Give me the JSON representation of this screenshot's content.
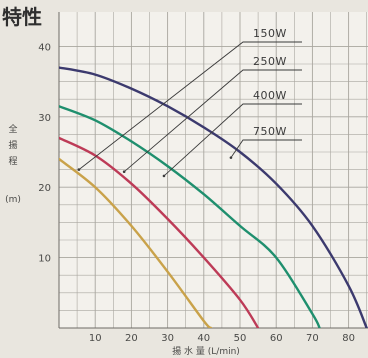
{
  "chart_data": {
    "type": "line",
    "title": "特性",
    "xlabel": "揚 水 量 (L/min)",
    "ylabel": [
      "全",
      "揚",
      "程",
      "(m)"
    ],
    "xlim": [
      0,
      85
    ],
    "ylim": [
      0,
      42
    ],
    "x_ticks": [
      10,
      20,
      30,
      40,
      50,
      60,
      70,
      80
    ],
    "y_ticks": [
      10,
      20,
      30,
      40
    ],
    "grid": true,
    "series": [
      {
        "name": "150W",
        "color": "#c9a24a",
        "x": [
          0,
          10,
          20,
          30,
          40,
          42
        ],
        "y": [
          24,
          20,
          14.5,
          8,
          1,
          0
        ]
      },
      {
        "name": "250W",
        "color": "#bd3b57",
        "x": [
          0,
          10,
          20,
          30,
          40,
          50,
          55
        ],
        "y": [
          27,
          24.5,
          20.5,
          15.5,
          10,
          4,
          0
        ]
      },
      {
        "name": "400W",
        "color": "#1f8f6e",
        "x": [
          0,
          10,
          20,
          30,
          40,
          50,
          60,
          70,
          72
        ],
        "y": [
          31.5,
          29.5,
          26.5,
          23,
          19,
          14.5,
          10,
          2,
          0
        ]
      },
      {
        "name": "750W",
        "color": "#3c3a6e",
        "x": [
          0,
          10,
          20,
          30,
          40,
          50,
          60,
          70,
          80,
          85
        ],
        "y": [
          37,
          36,
          34,
          31.5,
          28.5,
          25,
          20.5,
          14.5,
          6,
          0
        ]
      }
    ]
  }
}
